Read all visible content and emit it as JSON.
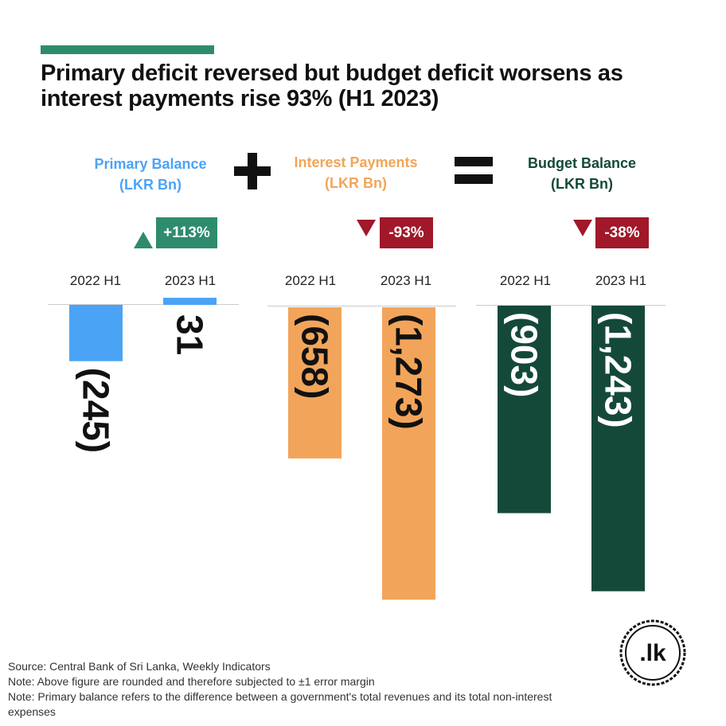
{
  "title": "Primary deficit reversed but budget deficit worsens as interest payments rise 93% (H1 2023)",
  "colors": {
    "accent": "#2e8b6e",
    "primary": "#4ba3f5",
    "interest": "#f2a55a",
    "budget": "#14493a",
    "increase": "#2e8b6e",
    "decrease": "#a0182a"
  },
  "panels": [
    {
      "title": "Primary Balance",
      "unit": "(LKR Bn)",
      "change": "+113%",
      "direction": "up"
    },
    {
      "title": "Interest Payments",
      "unit": "(LKR Bn)",
      "change": "-93%",
      "direction": "down"
    },
    {
      "title": "Budget Balance",
      "unit": "(LKR Bn)",
      "change": "-38%",
      "direction": "down"
    }
  ],
  "operators": [
    "plus",
    "equals"
  ],
  "chart_data": [
    {
      "type": "bar",
      "title": "Primary Balance",
      "categories": [
        "2022 H1",
        "2023 H1"
      ],
      "values": [
        -245,
        31
      ],
      "data_labels": [
        "(245)",
        "31"
      ]
    },
    {
      "type": "bar",
      "title": "Interest Payments",
      "categories": [
        "2022 H1",
        "2023 H1"
      ],
      "values": [
        -658,
        -1273
      ],
      "data_labels": [
        "(658)",
        "(1,273)"
      ]
    },
    {
      "type": "bar",
      "title": "Budget Balance",
      "categories": [
        "2022 H1",
        "2023 H1"
      ],
      "values": [
        -903,
        -1243
      ],
      "data_labels": [
        "(903)",
        "(1,243)"
      ]
    }
  ],
  "footer": {
    "source": "Source: Central Bank of Sri Lanka, Weekly Indicators",
    "note1": "Note: Above figure are rounded and therefore subjected to ±1 error margin",
    "note2": "Note: Primary balance refers to the difference between a government's total revenues and its total non-interest expenses"
  },
  "logo": {
    "text": ".lk",
    "icon": "lk-seal-logo"
  }
}
